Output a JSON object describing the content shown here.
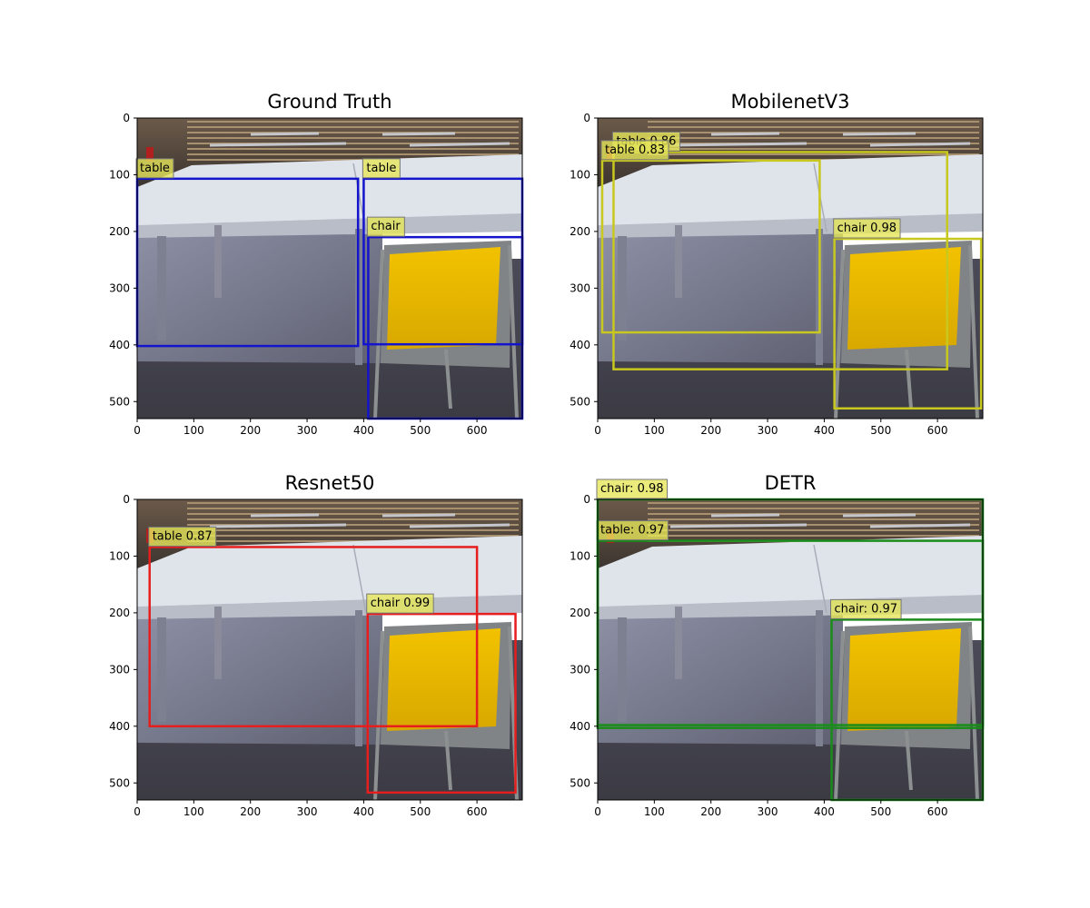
{
  "figure": {
    "panels": [
      {
        "title": "Ground Truth",
        "box_color": "#1414cc",
        "label_bg": "#e6e65a",
        "boxes": [
          {
            "label": "table",
            "x1": 0,
            "y1": 107,
            "x2": 390,
            "y2": 402
          },
          {
            "label": "table",
            "x1": 400,
            "y1": 107,
            "x2": 680,
            "y2": 399
          },
          {
            "label": "chair",
            "x1": 408,
            "y1": 210,
            "x2": 680,
            "y2": 530
          }
        ]
      },
      {
        "title": "MobilenetV3",
        "box_color": "#c8c81e",
        "label_bg": "#e6e65a",
        "boxes": [
          {
            "label": "table 0.86",
            "x1": 28,
            "y1": 60,
            "x2": 617,
            "y2": 443
          },
          {
            "label": "table 0.83",
            "x1": 8,
            "y1": 75,
            "x2": 392,
            "y2": 378
          },
          {
            "label": "chair 0.98",
            "x1": 418,
            "y1": 213,
            "x2": 677,
            "y2": 512
          }
        ]
      },
      {
        "title": "Resnet50",
        "box_color": "#e61e1e",
        "label_bg": "#e6e65a",
        "boxes": [
          {
            "label": "table 0.87",
            "x1": 22,
            "y1": 84,
            "x2": 600,
            "y2": 400
          },
          {
            "label": "chair 0.99",
            "x1": 407,
            "y1": 202,
            "x2": 668,
            "y2": 517
          }
        ]
      },
      {
        "title": "DETR",
        "box_color": "#1a8c1a",
        "label_bg": "#e6e65a",
        "boxes": [
          {
            "label": "table: 0.97",
            "x1": 0,
            "y1": 73,
            "x2": 680,
            "y2": 403
          },
          {
            "label": "chair: 0.98",
            "x1": 0,
            "y1": 0,
            "x2": 680,
            "y2": 398
          },
          {
            "label": "chair: 0.97",
            "x1": 413,
            "y1": 212,
            "x2": 680,
            "y2": 530
          }
        ]
      }
    ],
    "axes": {
      "x_ticks": [
        0,
        100,
        200,
        300,
        400,
        500,
        600
      ],
      "y_ticks": [
        0,
        100,
        200,
        300,
        400,
        500
      ],
      "xlim": [
        0,
        680
      ],
      "ylim": [
        0,
        530
      ]
    }
  }
}
